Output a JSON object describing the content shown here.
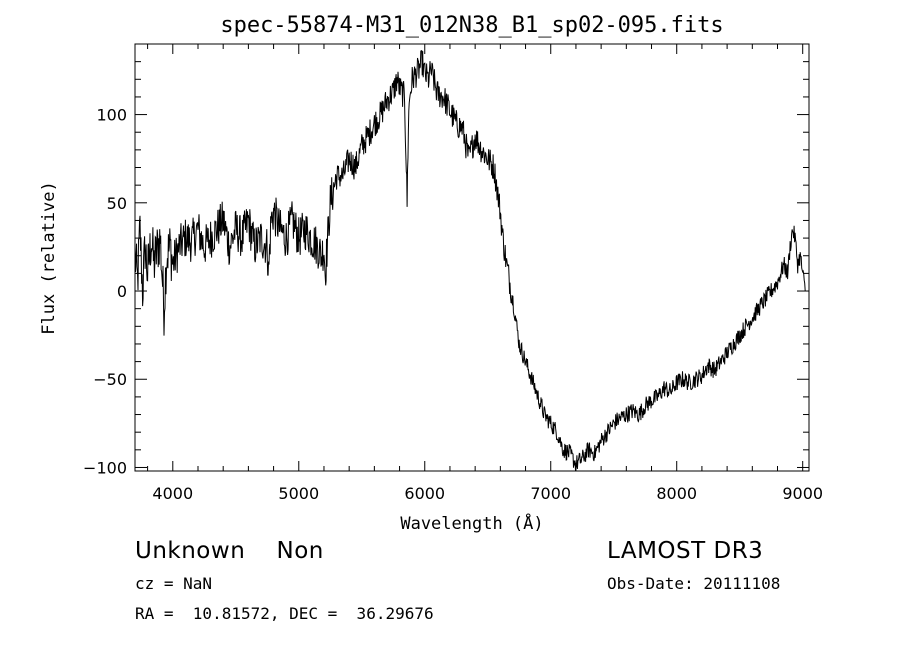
{
  "chart_data": {
    "type": "line",
    "title": "spec-55874-M31_012N38_B1_sp02-095.fits",
    "xlabel": "Wavelength (Å)",
    "ylabel": "Flux (relative)",
    "xlim": [
      3700,
      9050
    ],
    "ylim": [
      -102,
      140
    ],
    "x_ticks": [
      4000,
      5000,
      6000,
      7000,
      8000,
      9000
    ],
    "y_ticks": [
      -100,
      -50,
      0,
      50,
      100
    ],
    "series": [
      {
        "name": "flux",
        "x": [
          3700,
          3720,
          3740,
          3760,
          3780,
          3800,
          3830,
          3850,
          3880,
          3900,
          3930,
          3950,
          3980,
          4000,
          4050,
          4100,
          4150,
          4200,
          4250,
          4300,
          4350,
          4400,
          4450,
          4500,
          4550,
          4600,
          4650,
          4700,
          4750,
          4760,
          4770,
          4780,
          4800,
          4850,
          4900,
          4950,
          5000,
          5050,
          5100,
          5150,
          5180,
          5200,
          5210,
          5220,
          5250,
          5300,
          5350,
          5400,
          5450,
          5500,
          5550,
          5600,
          5650,
          5700,
          5750,
          5780,
          5800,
          5840,
          5850,
          5860,
          5870,
          5880,
          5900,
          5950,
          5980,
          6000,
          6030,
          6050,
          6100,
          6150,
          6200,
          6250,
          6300,
          6350,
          6400,
          6450,
          6500,
          6550,
          6600,
          6620,
          6650,
          6700,
          6750,
          6800,
          6850,
          6900,
          6950,
          7000,
          7050,
          7100,
          7150,
          7200,
          7250,
          7300,
          7350,
          7400,
          7450,
          7500,
          7550,
          7600,
          7650,
          7700,
          7750,
          7800,
          7850,
          7900,
          7950,
          8000,
          8050,
          8100,
          8150,
          8200,
          8250,
          8300,
          8350,
          8400,
          8450,
          8500,
          8550,
          8600,
          8650,
          8700,
          8750,
          8800,
          8850,
          8880,
          8900,
          8920,
          8940,
          8960,
          8980,
          9000,
          9020
        ],
        "y": [
          20,
          5,
          35,
          0,
          25,
          10,
          30,
          15,
          25,
          30,
          -10,
          20,
          25,
          15,
          25,
          30,
          28,
          35,
          25,
          30,
          35,
          40,
          25,
          35,
          30,
          40,
          25,
          30,
          25,
          10,
          25,
          40,
          45,
          35,
          30,
          40,
          30,
          35,
          30,
          25,
          20,
          25,
          10,
          20,
          50,
          65,
          65,
          75,
          70,
          82,
          88,
          95,
          100,
          108,
          113,
          120,
          115,
          110,
          80,
          50,
          95,
          110,
          120,
          125,
          130,
          123,
          120,
          125,
          112,
          110,
          102,
          95,
          92,
          75,
          88,
          80,
          75,
          70,
          45,
          30,
          15,
          -5,
          -30,
          -40,
          -50,
          -60,
          -70,
          -75,
          -80,
          -90,
          -92,
          -98,
          -95,
          -90,
          -92,
          -85,
          -80,
          -75,
          -72,
          -70,
          -68,
          -70,
          -65,
          -62,
          -60,
          -55,
          -57,
          -52,
          -50,
          -52,
          -50,
          -48,
          -42,
          -45,
          -40,
          -35,
          -30,
          -25,
          -20,
          -15,
          -10,
          -5,
          0,
          5,
          15,
          10,
          25,
          35,
          30,
          15,
          20,
          10,
          0
        ]
      }
    ]
  },
  "info": {
    "classification": "Unknown    Non",
    "cz": "cz = NaN",
    "coords": "RA =  10.81572, DEC =  36.29676",
    "survey": "LAMOST DR3",
    "obs_date": "Obs-Date: 20111108"
  }
}
